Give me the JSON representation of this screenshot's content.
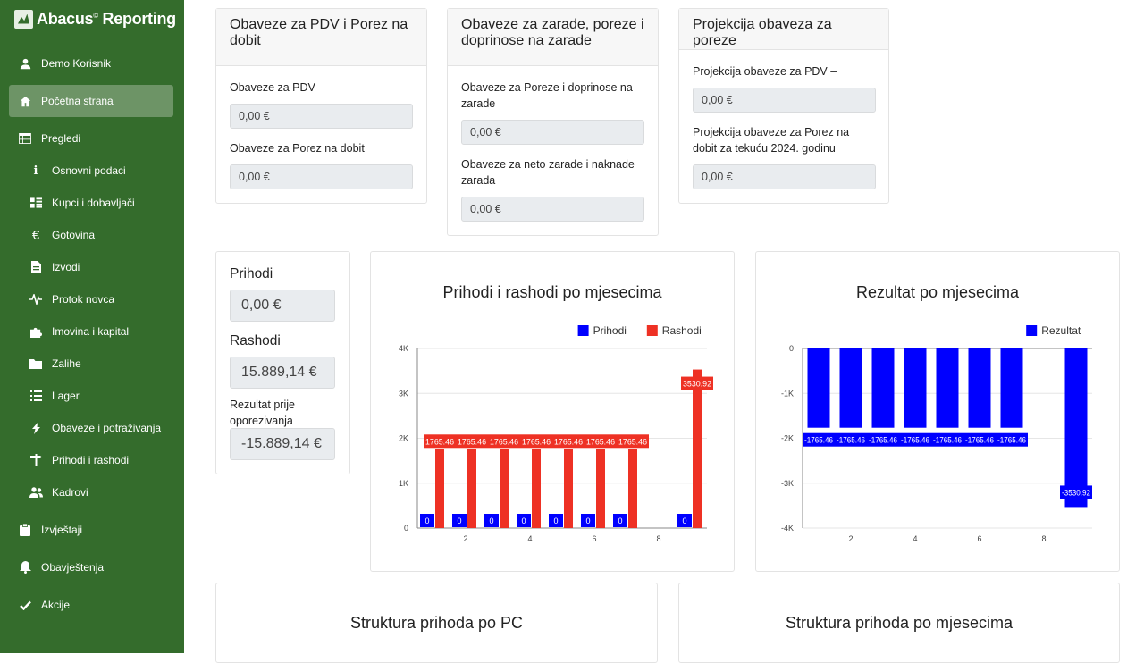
{
  "app": {
    "brand": "Abacus",
    "brand_mark": "©",
    "brand_suffix": "Reporting"
  },
  "sidebar": {
    "user": {
      "label": "Demo Korisnik",
      "icon": "user-icon"
    },
    "items": [
      {
        "label": "Početna strana",
        "icon": "home-icon",
        "active": true
      },
      {
        "label": "Pregledi",
        "icon": "table-icon"
      },
      {
        "label": "Osnovni podaci",
        "icon": "info-icon"
      },
      {
        "label": "Kupci i dobavljači",
        "icon": "list-icon"
      },
      {
        "label": "Gotovina",
        "icon": "euro-icon"
      },
      {
        "label": "Izvodi",
        "icon": "document-icon"
      },
      {
        "label": "Protok novca",
        "icon": "pulse-icon"
      },
      {
        "label": "Imovina i kapital",
        "icon": "puzzle-icon"
      },
      {
        "label": "Zalihe",
        "icon": "folder-icon"
      },
      {
        "label": "Lager",
        "icon": "bullet-list-icon"
      },
      {
        "label": "Obaveze i potraživanja",
        "icon": "bolt-icon"
      },
      {
        "label": "Prihodi i rashodi",
        "icon": "signpost-icon"
      },
      {
        "label": "Kadrovi",
        "icon": "users-icon"
      },
      {
        "label": "Izvještaji",
        "icon": "clipboard-icon"
      },
      {
        "label": "Obavještenja",
        "icon": "bell-icon"
      },
      {
        "label": "Akcije",
        "icon": "check-icon"
      }
    ]
  },
  "pdv_card": {
    "title": "Obaveze za PDV i Porez na dobit",
    "pdv_label": "Obaveze za PDV",
    "pdv_value": "0,00 €",
    "porez_label": "Obaveze za Porez na dobit",
    "porez_value": "0,00 €"
  },
  "zarade_card": {
    "title": "Obaveze za zarade, poreze i doprinose na zarade",
    "porezi_label": "Obaveze za Poreze i doprinose na zarade",
    "porezi_value": "0,00 €",
    "neto_label": "Obaveze za neto zarade i naknade zarada",
    "neto_value": "0,00 €"
  },
  "projekcija_card": {
    "title": "Projekcija obaveza za poreze",
    "pdv_label": "Projekcija obaveze za PDV –",
    "pdv_value": "0,00 €",
    "dobit_label": "Projekcija obaveze za Porez na dobit za tekuću 2024. godinu",
    "dobit_value": "0,00 €"
  },
  "summary": {
    "prihodi_label": "Prihodi",
    "prihodi_value": "0,00 €",
    "rashodi_label": "Rashodi",
    "rashodi_value": "15.889,14 €",
    "rezultat_label": "Rezultat prije oporezivanja",
    "rezultat_value": "-15.889,14 €"
  },
  "bottom_cards": {
    "pc_title": "Struktura prihoda po PC",
    "mj_title": "Struktura prihoda po mjesecima"
  },
  "chart_data": [
    {
      "type": "bar",
      "title": "Prihodi i rashodi po mjesecima",
      "x": [
        1,
        2,
        3,
        4,
        5,
        6,
        7,
        9
      ],
      "x_ticks": [
        "2",
        "4",
        "6",
        "8"
      ],
      "y_ticks": [
        "0",
        "1K",
        "2K",
        "3K",
        "4K"
      ],
      "ylim": [
        0,
        4000
      ],
      "legend_position": "top-right",
      "grid": true,
      "series": [
        {
          "name": "Prihodi",
          "color": "#0000ff",
          "values": [
            0,
            0,
            0,
            0,
            0,
            0,
            0,
            0
          ],
          "labels": [
            "0",
            "0",
            "0",
            "0",
            "0",
            "0",
            "0",
            "0"
          ]
        },
        {
          "name": "Rashodi",
          "color": "#ee3124",
          "values": [
            1765.46,
            1765.46,
            1765.46,
            1765.46,
            1765.46,
            1765.46,
            1765.46,
            3530.92
          ],
          "labels": [
            "1765.46",
            "1765.46",
            "1765.46",
            "1765.46",
            "1765.46",
            "1765.46",
            "1765.46",
            "3530.92"
          ]
        }
      ]
    },
    {
      "type": "bar",
      "title": "Rezultat po mjesecima",
      "x": [
        1,
        2,
        3,
        4,
        5,
        6,
        7,
        9
      ],
      "x_ticks": [
        "2",
        "4",
        "6",
        "8"
      ],
      "y_ticks": [
        "0",
        "-1K",
        "-2K",
        "-3K",
        "-4K"
      ],
      "ylim": [
        -4000,
        0
      ],
      "legend_position": "top-right",
      "grid": true,
      "series": [
        {
          "name": "Rezultat",
          "color": "#0000ff",
          "values": [
            -1765.46,
            -1765.46,
            -1765.46,
            -1765.46,
            -1765.46,
            -1765.46,
            -1765.46,
            -3530.92
          ],
          "labels": [
            "-1765.46",
            "-1765.46",
            "-1765.46",
            "-1765.46",
            "-1765.46",
            "-1765.46",
            "-1765.46",
            "-3530.92"
          ]
        }
      ]
    }
  ]
}
